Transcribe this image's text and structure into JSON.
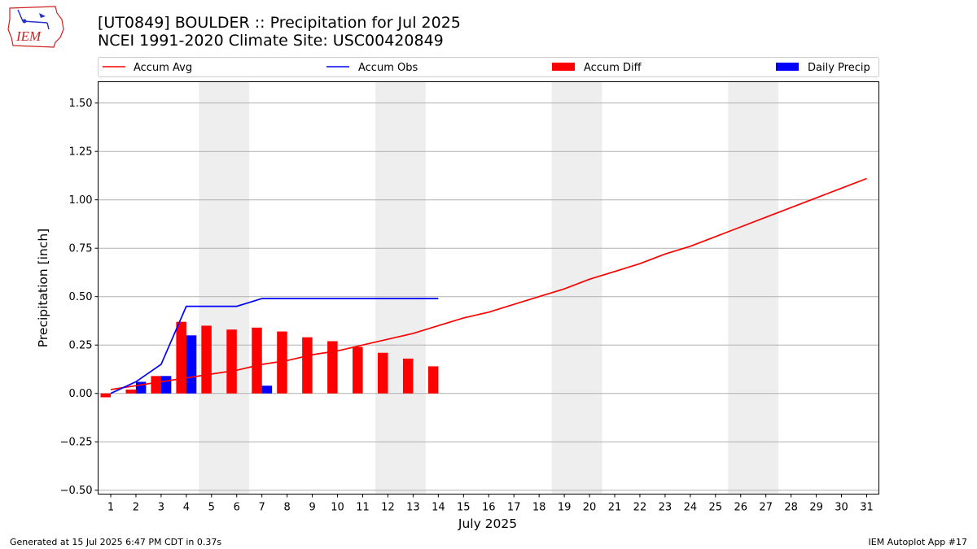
{
  "title": {
    "line1": "[UT0849] BOULDER :: Precipitation for Jul 2025",
    "line2": "NCEI 1991-2020 Climate Site: USC00420849"
  },
  "logo": {
    "text": "IEM"
  },
  "footer": {
    "generated": "Generated at 15 Jul 2025 6:47 PM CDT in 0.37s",
    "app": "IEM Autoplot App #17"
  },
  "colors": {
    "avg": "#ff0000",
    "obs": "#0000ff",
    "diff": "#ff0000",
    "daily": "#0000ff",
    "weekend": "#eeeeee",
    "grid": "#b0b0b0"
  },
  "chart_data": {
    "type": "bar",
    "xlabel": "July 2025",
    "ylabel": "Precipitation [inch]",
    "ylim": [
      -0.52,
      1.61
    ],
    "yticks": [
      -0.5,
      -0.25,
      0.0,
      0.25,
      0.5,
      0.75,
      1.0,
      1.25,
      1.5
    ],
    "ytick_labels": [
      "−0.50",
      "−0.25",
      "0.00",
      "0.25",
      "0.50",
      "0.75",
      "1.00",
      "1.25",
      "1.50"
    ],
    "days": [
      1,
      2,
      3,
      4,
      5,
      6,
      7,
      8,
      9,
      10,
      11,
      12,
      13,
      14,
      15,
      16,
      17,
      18,
      19,
      20,
      21,
      22,
      23,
      24,
      25,
      26,
      27,
      28,
      29,
      30,
      31
    ],
    "weekends": [
      [
        5,
        6
      ],
      [
        12,
        13
      ],
      [
        19,
        20
      ],
      [
        26,
        27
      ]
    ],
    "grid": "horizontal",
    "legend_position": "top",
    "series": [
      {
        "name": "Accum Avg",
        "kind": "line",
        "values": [
          0.02,
          0.04,
          0.06,
          0.08,
          0.1,
          0.12,
          0.15,
          0.17,
          0.2,
          0.22,
          0.25,
          0.28,
          0.31,
          0.35,
          0.39,
          0.42,
          0.46,
          0.5,
          0.54,
          0.59,
          0.63,
          0.67,
          0.72,
          0.76,
          0.81,
          0.86,
          0.91,
          0.96,
          1.01,
          1.06,
          1.11
        ]
      },
      {
        "name": "Accum Obs",
        "kind": "line",
        "values": [
          0.0,
          0.06,
          0.15,
          0.45,
          0.45,
          0.45,
          0.49,
          0.49,
          0.49,
          0.49,
          0.49,
          0.49,
          0.49,
          0.49
        ]
      },
      {
        "name": "Accum Diff",
        "kind": "bar",
        "values": [
          -0.02,
          0.02,
          0.09,
          0.37,
          0.35,
          0.33,
          0.34,
          0.32,
          0.29,
          0.27,
          0.24,
          0.21,
          0.18,
          0.14
        ]
      },
      {
        "name": "Daily Precip",
        "kind": "bar",
        "values": [
          0.0,
          0.06,
          0.09,
          0.3,
          0.0,
          0.0,
          0.04,
          0.0,
          0.0,
          0.0,
          0.0,
          0.0,
          0.0,
          0.0
        ]
      }
    ]
  }
}
